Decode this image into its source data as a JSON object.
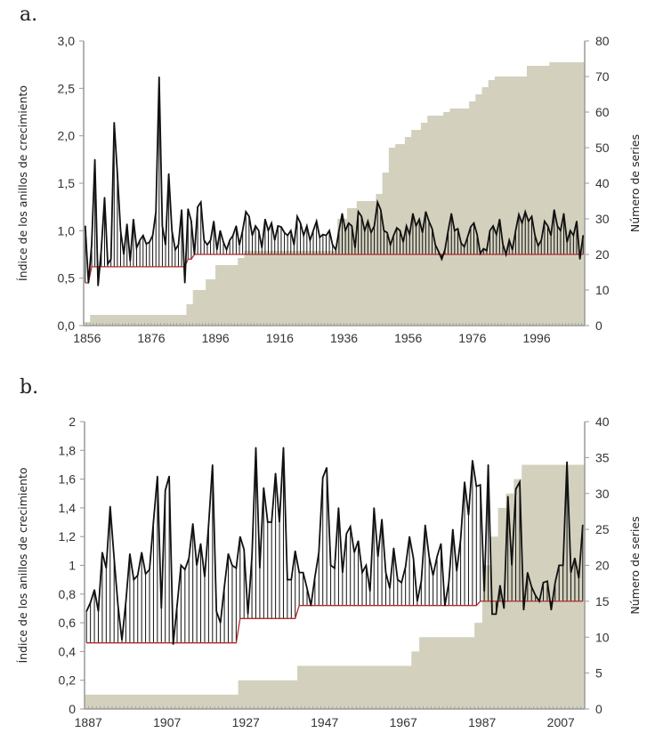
{
  "panels": [
    {
      "label": "a."
    },
    {
      "label": "b."
    }
  ],
  "colors": {
    "area_fill": "#d3d1be",
    "line": "#111111",
    "threshold_line": "#b5292b",
    "axis": "#999999"
  },
  "chart_data": [
    {
      "id": "a",
      "type": "line",
      "title": "",
      "xlabel": "",
      "ylabel": "Índice de los anillos de crecimiento",
      "y2label": "Número de series",
      "x_start": 1856,
      "x_end": 2011,
      "xticks": [
        "1856",
        "1876",
        "1896",
        "1916",
        "1936",
        "1956",
        "1976",
        "1996"
      ],
      "ylim": [
        0,
        3.0
      ],
      "yticks": [
        "0,0",
        "0,5",
        "1,0",
        "1,5",
        "2,0",
        "2,5",
        "3,0"
      ],
      "y2lim": [
        0,
        80
      ],
      "y2ticks": [
        "0",
        "10",
        "20",
        "30",
        "40",
        "50",
        "60",
        "70",
        "80"
      ],
      "grid": false,
      "legend": "none",
      "series": [
        {
          "name": "Índice de los anillos de crecimiento",
          "axis": "left",
          "style": "line-with-drop-lines",
          "values": [
            1.05,
            0.45,
            0.85,
            1.75,
            0.42,
            0.8,
            1.35,
            0.65,
            0.7,
            2.14,
            1.6,
            1.0,
            0.75,
            1.07,
            0.68,
            1.12,
            0.82,
            0.9,
            0.95,
            0.86,
            0.88,
            0.95,
            1.2,
            2.62,
            1.05,
            0.85,
            1.6,
            1.0,
            0.8,
            0.85,
            1.22,
            0.45,
            1.23,
            1.1,
            0.75,
            1.25,
            1.3,
            0.9,
            0.85,
            0.9,
            1.1,
            0.8,
            1.0,
            0.88,
            0.8,
            0.9,
            0.95,
            1.05,
            0.85,
            1.0,
            1.2,
            1.15,
            0.95,
            1.05,
            1.0,
            0.82,
            1.12,
            1.0,
            1.08,
            0.9,
            1.05,
            1.04,
            0.98,
            0.95,
            1.0,
            0.85,
            1.15,
            1.08,
            0.95,
            1.05,
            0.9,
            1.0,
            1.1,
            0.93,
            0.96,
            0.95,
            1.0,
            0.85,
            0.8,
            1.0,
            1.18,
            1.0,
            1.08,
            1.05,
            0.82,
            1.2,
            1.15,
            1.0,
            1.1,
            0.98,
            1.05,
            1.3,
            1.22,
            1.0,
            0.98,
            0.85,
            0.95,
            1.03,
            1.0,
            0.88,
            1.05,
            0.96,
            1.18,
            1.05,
            1.12,
            0.98,
            1.2,
            1.1,
            1.02,
            0.85,
            0.78,
            0.7,
            0.8,
            1.0,
            1.18,
            1.0,
            1.02,
            0.87,
            0.83,
            0.93,
            1.04,
            1.08,
            0.96,
            0.76,
            0.81,
            0.79,
            1.0,
            1.05,
            0.96,
            1.12,
            0.86,
            0.75,
            0.9,
            0.8,
            1.0,
            1.17,
            1.08,
            1.2,
            1.1,
            1.15,
            0.95,
            0.84,
            0.9,
            1.1,
            1.05,
            0.95,
            1.22,
            1.05,
            1.0,
            1.18,
            0.88,
            1.0,
            0.95,
            1.1,
            0.7,
            0.95,
            0.9,
            0.97
          ]
        },
        {
          "name": "Umbral",
          "axis": "left",
          "style": "step-line",
          "values_by_range": [
            {
              "from": 1856,
              "to": 1857,
              "value": 0.45
            },
            {
              "from": 1858,
              "to": 1887,
              "value": 0.62
            },
            {
              "from": 1888,
              "to": 1889,
              "value": 0.7
            },
            {
              "from": 1890,
              "to": 2011,
              "value": 0.75
            }
          ]
        },
        {
          "name": "Número de series",
          "axis": "right",
          "style": "area",
          "values_by_range": [
            {
              "from": 1856,
              "to": 1857,
              "value": 1
            },
            {
              "from": 1858,
              "to": 1887,
              "value": 3
            },
            {
              "from": 1888,
              "to": 1889,
              "value": 6
            },
            {
              "from": 1890,
              "to": 1893,
              "value": 10
            },
            {
              "from": 1894,
              "to": 1896,
              "value": 13
            },
            {
              "from": 1897,
              "to": 1903,
              "value": 17
            },
            {
              "from": 1904,
              "to": 1905,
              "value": 19
            },
            {
              "from": 1906,
              "to": 1934,
              "value": 21
            },
            {
              "from": 1935,
              "to": 1937,
              "value": 30
            },
            {
              "from": 1938,
              "to": 1940,
              "value": 33
            },
            {
              "from": 1941,
              "to": 1946,
              "value": 35
            },
            {
              "from": 1947,
              "to": 1948,
              "value": 37
            },
            {
              "from": 1949,
              "to": 1950,
              "value": 43
            },
            {
              "from": 1951,
              "to": 1952,
              "value": 50
            },
            {
              "from": 1953,
              "to": 1955,
              "value": 51
            },
            {
              "from": 1956,
              "to": 1957,
              "value": 53
            },
            {
              "from": 1958,
              "to": 1960,
              "value": 55
            },
            {
              "from": 1961,
              "to": 1962,
              "value": 57
            },
            {
              "from": 1963,
              "to": 1967,
              "value": 59
            },
            {
              "from": 1968,
              "to": 1969,
              "value": 60
            },
            {
              "from": 1970,
              "to": 1975,
              "value": 61
            },
            {
              "from": 1976,
              "to": 1977,
              "value": 63
            },
            {
              "from": 1978,
              "to": 1979,
              "value": 65
            },
            {
              "from": 1980,
              "to": 1981,
              "value": 67
            },
            {
              "from": 1982,
              "to": 1983,
              "value": 69
            },
            {
              "from": 1984,
              "to": 1993,
              "value": 70
            },
            {
              "from": 1994,
              "to": 2000,
              "value": 73
            },
            {
              "from": 2001,
              "to": 2011,
              "value": 74
            }
          ]
        }
      ]
    },
    {
      "id": "b",
      "type": "line",
      "title": "",
      "xlabel": "",
      "ylabel": "Índice de los anillos de crecimiento",
      "y2label": "Número de series",
      "x_start": 1887,
      "x_end": 2013,
      "xticks": [
        "1887",
        "1907",
        "1927",
        "1947",
        "1967",
        "1987",
        "2007"
      ],
      "ylim": [
        0,
        2
      ],
      "yticks": [
        "0",
        "0,2",
        "0,4",
        "0,6",
        "0,8",
        "1",
        "1,2",
        "1,4",
        "1,6",
        "1,8",
        "2"
      ],
      "y2lim": [
        0,
        40
      ],
      "y2ticks": [
        "0",
        "5",
        "10",
        "15",
        "20",
        "25",
        "30",
        "35",
        "40"
      ],
      "grid": false,
      "legend": "none",
      "series": [
        {
          "name": "Índice de los anillos de crecimiento",
          "axis": "left",
          "style": "line-with-drop-lines",
          "values": [
            0.68,
            0.74,
            0.83,
            0.68,
            1.09,
            0.98,
            1.41,
            1.05,
            0.72,
            0.48,
            0.75,
            1.08,
            0.9,
            0.93,
            1.09,
            0.94,
            0.97,
            1.3,
            1.62,
            0.7,
            1.52,
            1.62,
            0.45,
            0.72,
            1.0,
            0.97,
            1.05,
            1.29,
            1.0,
            1.15,
            0.92,
            1.28,
            1.7,
            0.68,
            0.6,
            0.85,
            1.08,
            1.0,
            0.98,
            1.2,
            1.11,
            0.66,
            1.06,
            1.82,
            0.98,
            1.54,
            1.3,
            1.3,
            1.64,
            1.3,
            1.82,
            0.9,
            0.9,
            1.1,
            0.95,
            0.95,
            0.84,
            0.72,
            0.92,
            1.09,
            1.61,
            1.68,
            1.0,
            0.98,
            1.4,
            0.95,
            1.22,
            1.27,
            1.09,
            1.17,
            0.95,
            1.0,
            0.82,
            1.4,
            1.06,
            1.32,
            0.95,
            0.84,
            1.12,
            0.9,
            0.88,
            0.99,
            1.2,
            1.05,
            0.75,
            0.89,
            1.28,
            1.06,
            0.93,
            1.06,
            1.15,
            0.72,
            0.88,
            1.25,
            0.96,
            1.18,
            1.58,
            1.35,
            1.73,
            1.55,
            1.56,
            0.82,
            1.7,
            0.66,
            0.66,
            0.86,
            0.7,
            1.48,
            1.0,
            1.53,
            1.58,
            0.69,
            0.95,
            0.85,
            0.79,
            0.75,
            0.88,
            0.89,
            0.69,
            0.88,
            1.0,
            1.0,
            1.72,
            0.95,
            1.05,
            0.91,
            1.28,
            0.98,
            1.38,
            1.23,
            0.85,
            0.96,
            0.9,
            1.2,
            1.2,
            0.85,
            0.72,
            0.82,
            0.87
          ],
          "note": "Approximately one value per year, 1887–2013"
        },
        {
          "name": "Umbral",
          "axis": "left",
          "style": "step-line",
          "values_by_range": [
            {
              "from": 1887,
              "to": 1925,
              "value": 0.46
            },
            {
              "from": 1926,
              "to": 1940,
              "value": 0.63
            },
            {
              "from": 1941,
              "to": 1986,
              "value": 0.72
            },
            {
              "from": 1987,
              "to": 2013,
              "value": 0.75
            }
          ]
        },
        {
          "name": "Número de series",
          "axis": "right",
          "style": "area",
          "values_by_range": [
            {
              "from": 1887,
              "to": 1925,
              "value": 2
            },
            {
              "from": 1926,
              "to": 1940,
              "value": 4
            },
            {
              "from": 1941,
              "to": 1969,
              "value": 6
            },
            {
              "from": 1970,
              "to": 1971,
              "value": 8
            },
            {
              "from": 1972,
              "to": 1985,
              "value": 10
            },
            {
              "from": 1986,
              "to": 1987,
              "value": 12
            },
            {
              "from": 1988,
              "to": 1989,
              "value": 20
            },
            {
              "from": 1990,
              "to": 1991,
              "value": 24
            },
            {
              "from": 1992,
              "to": 1993,
              "value": 28
            },
            {
              "from": 1994,
              "to": 1995,
              "value": 30
            },
            {
              "from": 1996,
              "to": 1997,
              "value": 32
            },
            {
              "from": 1998,
              "to": 2013,
              "value": 34
            }
          ]
        }
      ]
    }
  ]
}
